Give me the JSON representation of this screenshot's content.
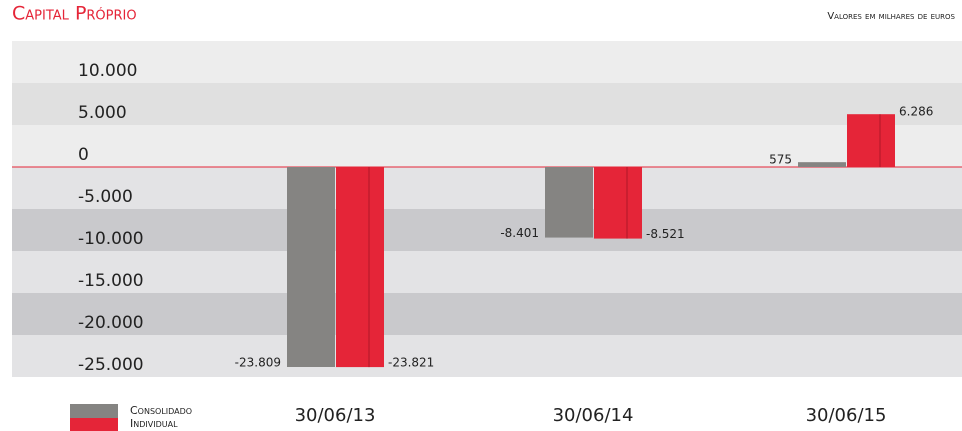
{
  "chart_data": {
    "type": "bar",
    "title": "Capital Próprio",
    "subtitle": "Valores em milhares de euros",
    "categories": [
      "30/06/13",
      "30/06/14",
      "30/06/15"
    ],
    "series": [
      {
        "name": "Consolidado",
        "color": "#858482",
        "values": [
          -23809,
          -8401,
          575
        ],
        "value_labels": [
          "-23.809",
          "-8.401",
          "575"
        ]
      },
      {
        "name": "Individual",
        "color": "#e52538",
        "values": [
          -23821,
          -8521,
          6286
        ],
        "value_labels": [
          "-23.821",
          "-8.521",
          "6.286"
        ]
      }
    ],
    "ylim": [
      -25000,
      15000
    ],
    "yticks": [
      {
        "value": 10000,
        "label": "10.000"
      },
      {
        "value": 5000,
        "label": "5.000"
      },
      0,
      {
        "value": -5000,
        "label": "-5.000"
      },
      {
        "value": -10000,
        "label": "-10.000"
      },
      {
        "value": -15000,
        "label": "-15.000"
      },
      {
        "value": -20000,
        "label": "-20.000"
      },
      {
        "value": -25000,
        "label": "-25.000"
      }
    ],
    "legend": "bottom-left"
  }
}
